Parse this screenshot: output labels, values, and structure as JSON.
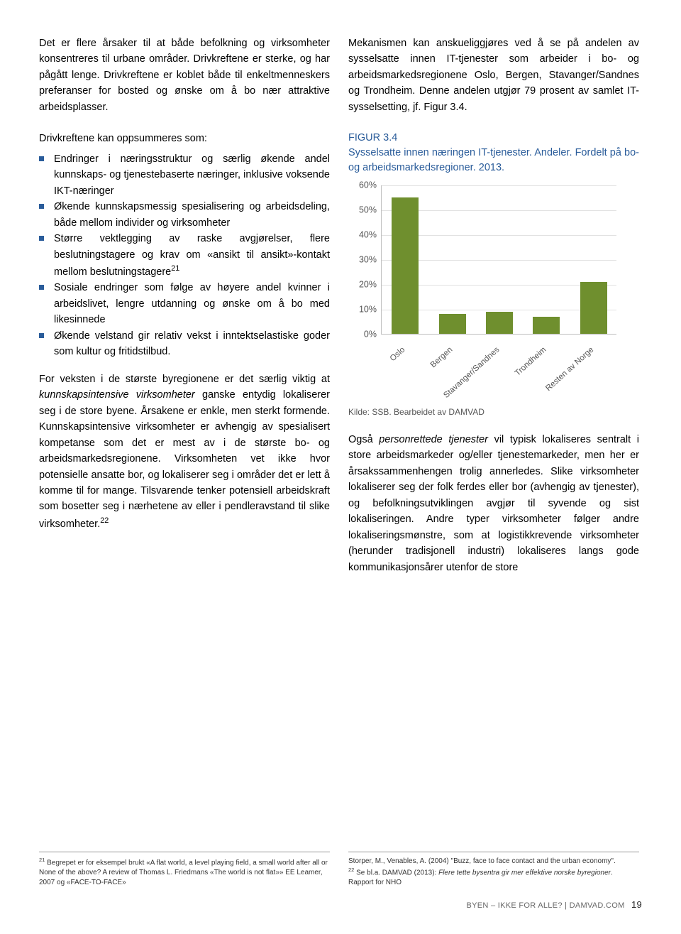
{
  "topLeft": "Det er flere årsaker til at både befolkning og virksomheter konsentreres til urbane områder. Drivkreftene er sterke, og har pågått lenge. Drivkreftene er koblet både til enkeltmenneskers preferanser for bosted og ønske om å bo nær attraktive arbeidsplasser.",
  "topRight": "Mekanismen kan anskueliggjøres ved å se på andelen av sysselsatte innen IT-tjenester som arbeider i bo- og arbeidsmarkedsregionene Oslo, Bergen, Stavanger/Sandnes og Trondheim. Denne andelen utgjør 79 prosent av samlet IT-sysselsetting, jf. Figur 3.4.",
  "driversIntro": "Drivkreftene kan oppsummeres som:",
  "bullets": [
    "Endringer i næringsstruktur og særlig økende andel kunnskaps- og tjenestebaserte næringer, inklusive voksende IKT-næringer",
    "Økende kunnskapsmessig spesialisering og arbeidsdeling, både mellom individer og virksomheter",
    "Større vektlegging av raske avgjørelser, flere beslutningstagere og krav om «ansikt til ansikt»-kontakt mellom beslutningstagere",
    "Sosiale endringer som følge av høyere andel kvinner i arbeidslivet, lengre utdanning og ønske om å bo med likesinnede",
    "Økende velstand gir relativ vekst i inntektselastiske goder som kultur og fritidstilbud."
  ],
  "bulletSup": [
    "",
    "",
    "21",
    "",
    ""
  ],
  "belowBullets": "For veksten i de største byregionene er det særlig viktig at kunnskapsintensive virksomheter ganske entydig lokaliserer seg i de store byene. Årsakene er enkle, men sterkt formende. Kunnskapsintensive virksomheter er avhengig av spesialisert kompetanse som det er mest av i de største bo- og arbeidsmarkedsregionene. Virksomheten vet ikke hvor potensielle ansatte bor, og lokaliserer seg i områder det er lett å komme til for mange. Tilsvarende tenker potensiell arbeidskraft som bosetter seg i nærhetene av eller i pendleravstand til slike virksomheter.",
  "belowBulletsSup": "22",
  "figure": {
    "num": "FIGUR 3.4",
    "title": "Sysselsatte innen næringen IT-tjenester. Andeler. Fordelt på bo- og arbeidsmarkedsregioner. 2013.",
    "yTicks": [
      "0%",
      "10%",
      "20%",
      "30%",
      "40%",
      "50%",
      "60%"
    ],
    "categories": [
      "Oslo",
      "Bergen",
      "Stavanger/Sandnes",
      "Trondheim",
      "Resten av Norge"
    ],
    "values": [
      55,
      8,
      9,
      7,
      21
    ],
    "ymax": 60,
    "barColor": "#6f8f2e",
    "source": "Kilde: SSB. Bearbeidet av DAMVAD"
  },
  "rightBody": "Også personrettede tjenester vil typisk lokaliseres sentralt i store arbeidsmarkeder og/eller tjenestemarkeder, men her er årsakssammenhengen trolig annerledes. Slike virksomheter lokaliserer seg der folk ferdes eller bor (avhengig av tjenester), og befolkningsutviklingen avgjør til syvende og sist lokaliseringen. Andre typer virksomheter følger andre lokaliseringsmønstre, som at logistikkrevende virksomheter (herunder tradisjonell industri) lokaliseres langs gode kommunikasjonsårer utenfor de store",
  "fnLeft": "21 Begrepet er for eksempel brukt «A flat world, a level playing field, a small world after all or None of the above? A review of Thomas L. Friedmans «The world is not flat»» EE Leamer, 2007 og «FACE-TO-FACE»",
  "fnRight": "Storper, M., Venables, A. (2004) \"Buzz, face to face contact and the urban economy\".\n22 Se bl.a. DAMVAD (2013): Flere tette bysentra gir mer effektive norske byregioner. Rapport for NHO",
  "footer": {
    "text": "BYEN – IKKE FOR ALLE? | DAMVAD.COM",
    "page": "19"
  }
}
